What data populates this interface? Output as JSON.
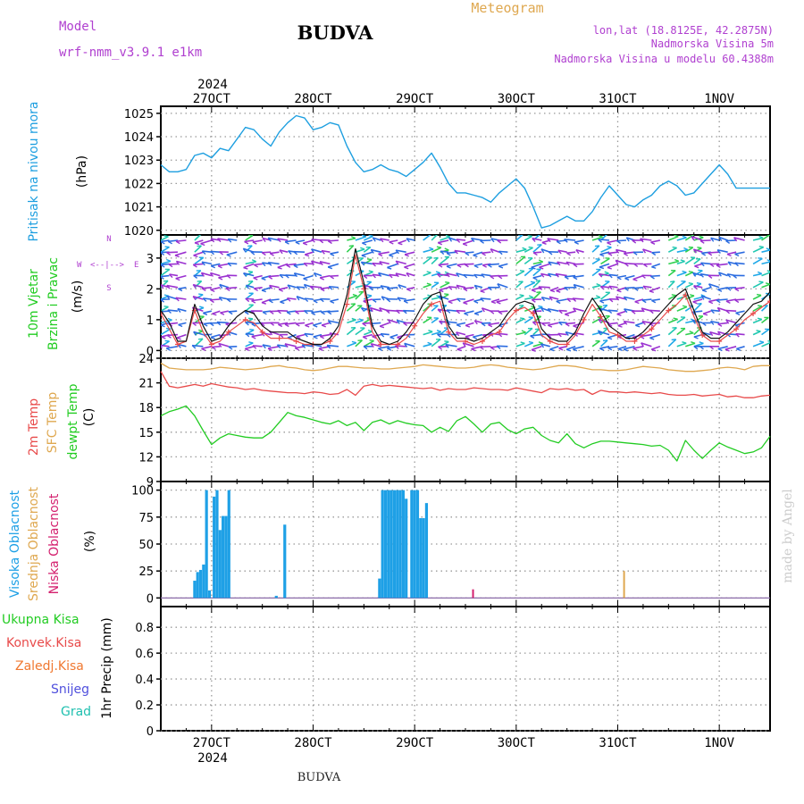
{
  "header": {
    "model_label": "Model",
    "model_name": "wrf-nmm_v3.9.1  e1km",
    "station_title": "BUDVA",
    "meteogram_label": "Meteogram",
    "coords": "lon,lat (18.8125E, 42.2875N)",
    "elevation": "Nadmorska Visina 5m",
    "model_elevation": "Nadmorska Visina u modelu 60.4388m",
    "watermark": "made by Angel",
    "footer": "BUDVA"
  },
  "colors": {
    "pressure": "#1e9fe0",
    "temp2m": "#e84a4a",
    "sfc": "#dfa850",
    "dewpoint": "#22cc22",
    "wind_speed": "#111111",
    "gust": "#e84a4a",
    "high_cloud": "#1ea0e6",
    "mid_cloud": "#dfa850",
    "low_cloud": "#d4206e",
    "purple_text": "#b040d0"
  },
  "time_axis": {
    "top_year": "2024",
    "bottom_year": "2024",
    "labels": [
      "27OCT",
      "28OCT",
      "29OCT",
      "30OCT",
      "31OCT",
      "1NOV"
    ],
    "label_hours": [
      24,
      48,
      72,
      96,
      120,
      144
    ],
    "range_hours": [
      12,
      156
    ]
  },
  "chart_data": [
    {
      "type": "line",
      "name": "pressure",
      "ylabel_lines": [
        "Pritisak na nivou mora",
        "(hPa)"
      ],
      "yticks": [
        1020,
        1021,
        1022,
        1023,
        1024,
        1025
      ],
      "ylim": [
        1019.8,
        1025.3
      ],
      "grid": true,
      "x": [
        12,
        14,
        16,
        18,
        20,
        22,
        24,
        26,
        28,
        30,
        32,
        34,
        36,
        38,
        40,
        42,
        44,
        46,
        48,
        50,
        52,
        54,
        56,
        58,
        60,
        62,
        64,
        66,
        68,
        70,
        72,
        74,
        76,
        78,
        80,
        82,
        84,
        86,
        88,
        90,
        92,
        94,
        96,
        98,
        100,
        102,
        104,
        106,
        108,
        110,
        112,
        114,
        116,
        118,
        120,
        122,
        124,
        126,
        128,
        130,
        132,
        134,
        136,
        138,
        140,
        142,
        144,
        146,
        148,
        150,
        152,
        154,
        156
      ],
      "y": [
        1022.8,
        1022.5,
        1022.5,
        1022.6,
        1023.2,
        1023.3,
        1023.1,
        1023.5,
        1023.4,
        1023.9,
        1024.4,
        1024.3,
        1023.9,
        1023.6,
        1024.2,
        1024.6,
        1024.9,
        1024.8,
        1024.3,
        1024.4,
        1024.6,
        1024.5,
        1023.6,
        1022.9,
        1022.5,
        1022.6,
        1022.8,
        1022.6,
        1022.5,
        1022.3,
        1022.6,
        1022.9,
        1023.3,
        1022.7,
        1022.0,
        1021.6,
        1021.6,
        1021.5,
        1021.4,
        1021.2,
        1021.6,
        1021.9,
        1022.2,
        1021.8,
        1021.0,
        1020.1,
        1020.2,
        1020.4,
        1020.6,
        1020.4,
        1020.4,
        1020.8,
        1021.4,
        1021.9,
        1021.5,
        1021.1,
        1021.0,
        1021.3,
        1021.5,
        1021.9,
        1022.1,
        1021.9,
        1021.5,
        1021.6,
        1022.0,
        1022.4,
        1022.8,
        1022.4,
        1021.8,
        1021.8,
        1021.8,
        1021.8,
        1021.8
      ]
    },
    {
      "type": "line",
      "name": "wind",
      "ylabel_lines": [
        "10m Vjetar",
        "Brzina i Pravac",
        "(m/s)"
      ],
      "direction_key": [
        "W",
        "<--|-->",
        "E",
        "N",
        "S"
      ],
      "yticks": [
        0,
        1,
        2,
        3
      ],
      "ylim": [
        -0.25,
        3.75
      ],
      "grid": true,
      "series": [
        {
          "name": "speed",
          "x": [
            12,
            14,
            16,
            18,
            20,
            22,
            24,
            26,
            28,
            30,
            32,
            34,
            36,
            38,
            40,
            42,
            44,
            46,
            48,
            50,
            52,
            54,
            56,
            58,
            60,
            62,
            64,
            66,
            68,
            70,
            72,
            74,
            76,
            78,
            80,
            82,
            84,
            86,
            88,
            90,
            92,
            94,
            96,
            98,
            100,
            102,
            104,
            106,
            108,
            110,
            112,
            114,
            116,
            118,
            120,
            122,
            124,
            126,
            128,
            130,
            132,
            134,
            136,
            138,
            140,
            142,
            144,
            146,
            148,
            150,
            152,
            154,
            156
          ],
          "y": [
            1.3,
            0.9,
            0.3,
            0.3,
            1.5,
            0.8,
            0.3,
            0.4,
            0.8,
            1.1,
            1.3,
            1.2,
            0.8,
            0.6,
            0.6,
            0.6,
            0.4,
            0.3,
            0.2,
            0.2,
            0.4,
            0.8,
            1.8,
            3.3,
            2.2,
            0.8,
            0.3,
            0.2,
            0.3,
            0.6,
            1.0,
            1.5,
            1.8,
            1.9,
            0.8,
            0.4,
            0.4,
            0.3,
            0.4,
            0.6,
            0.8,
            1.2,
            1.5,
            1.6,
            1.5,
            0.7,
            0.4,
            0.3,
            0.3,
            0.6,
            1.2,
            1.7,
            1.3,
            0.8,
            0.6,
            0.4,
            0.4,
            0.6,
            0.9,
            1.2,
            1.5,
            1.8,
            2.0,
            1.3,
            0.6,
            0.4,
            0.4,
            0.6,
            0.9,
            1.2,
            1.5,
            1.6,
            1.9
          ]
        },
        {
          "name": "gust",
          "x": [
            12,
            14,
            16,
            18,
            20,
            22,
            24,
            26,
            28,
            30,
            32,
            34,
            36,
            38,
            40,
            42,
            44,
            46,
            48,
            50,
            52,
            54,
            56,
            58,
            60,
            62,
            64,
            66,
            68,
            70,
            72,
            74,
            76,
            78,
            80,
            82,
            84,
            86,
            88,
            90,
            92,
            94,
            96,
            98,
            100,
            102,
            104,
            106,
            108,
            110,
            112,
            114,
            116,
            118,
            120,
            122,
            124,
            126,
            128,
            130,
            132,
            134,
            136,
            138,
            140,
            142,
            144,
            146,
            148,
            150,
            152,
            154,
            156
          ],
          "y": [
            1.2,
            0.7,
            0.2,
            0.3,
            1.3,
            0.6,
            0.2,
            0.3,
            0.6,
            0.8,
            1.0,
            0.9,
            0.6,
            0.4,
            0.4,
            0.4,
            0.3,
            0.2,
            0.2,
            0.2,
            0.3,
            0.6,
            1.5,
            3.1,
            2.0,
            0.6,
            0.2,
            0.2,
            0.2,
            0.4,
            0.8,
            1.2,
            1.5,
            1.6,
            0.6,
            0.3,
            0.3,
            0.2,
            0.3,
            0.5,
            0.6,
            1.0,
            1.3,
            1.4,
            1.2,
            0.5,
            0.3,
            0.2,
            0.2,
            0.5,
            1.0,
            1.5,
            1.1,
            0.6,
            0.5,
            0.3,
            0.3,
            0.5,
            0.7,
            1.0,
            1.3,
            1.5,
            1.8,
            1.1,
            0.5,
            0.3,
            0.3,
            0.5,
            0.7,
            1.0,
            1.2,
            1.4,
            1.6
          ]
        }
      ]
    },
    {
      "type": "line",
      "name": "temperature",
      "ylabel_lines": [
        "2m Temp",
        "SFC Temp",
        "dewpt Temp",
        "(C)"
      ],
      "yticks": [
        9,
        12,
        15,
        18,
        21,
        24
      ],
      "ylim": [
        9,
        24
      ],
      "grid": true,
      "series": [
        {
          "name": "2m",
          "x": [
            12,
            14,
            16,
            18,
            20,
            22,
            24,
            26,
            28,
            30,
            32,
            34,
            36,
            38,
            40,
            42,
            44,
            46,
            48,
            50,
            52,
            54,
            56,
            58,
            60,
            62,
            64,
            66,
            68,
            70,
            72,
            74,
            76,
            78,
            80,
            82,
            84,
            86,
            88,
            90,
            92,
            94,
            96,
            98,
            100,
            102,
            104,
            106,
            108,
            110,
            112,
            114,
            116,
            118,
            120,
            122,
            124,
            126,
            128,
            130,
            132,
            134,
            136,
            138,
            140,
            142,
            144,
            146,
            148,
            150,
            152,
            154,
            156
          ],
          "y": [
            22.4,
            20.6,
            20.4,
            20.6,
            20.8,
            20.6,
            20.9,
            20.7,
            20.5,
            20.4,
            20.2,
            20.3,
            20.1,
            20.0,
            19.9,
            19.8,
            19.8,
            19.7,
            19.9,
            19.8,
            19.6,
            19.7,
            20.2,
            19.5,
            20.6,
            20.8,
            20.6,
            20.7,
            20.6,
            20.5,
            20.4,
            20.3,
            20.4,
            20.1,
            20.3,
            20.2,
            20.2,
            20.4,
            20.3,
            20.2,
            20.2,
            20.1,
            20.4,
            20.2,
            20.0,
            19.8,
            20.3,
            20.2,
            20.3,
            20.1,
            20.2,
            19.6,
            20.1,
            19.9,
            19.9,
            19.8,
            19.9,
            19.8,
            19.7,
            19.8,
            19.6,
            19.5,
            19.5,
            19.6,
            19.4,
            19.5,
            19.6,
            19.3,
            19.4,
            19.2,
            19.2,
            19.4,
            19.5
          ]
        },
        {
          "name": "sfc",
          "x": [
            12,
            14,
            16,
            18,
            20,
            22,
            24,
            26,
            28,
            30,
            32,
            34,
            36,
            38,
            40,
            42,
            44,
            46,
            48,
            50,
            52,
            54,
            56,
            58,
            60,
            62,
            64,
            66,
            68,
            70,
            72,
            74,
            76,
            78,
            80,
            82,
            84,
            86,
            88,
            90,
            92,
            94,
            96,
            98,
            100,
            102,
            104,
            106,
            108,
            110,
            112,
            114,
            116,
            118,
            120,
            122,
            124,
            126,
            128,
            130,
            132,
            134,
            136,
            138,
            140,
            142,
            144,
            146,
            148,
            150,
            152,
            154,
            156
          ],
          "y": [
            23.4,
            22.8,
            22.7,
            22.6,
            22.6,
            22.6,
            22.7,
            22.9,
            22.8,
            22.7,
            22.6,
            22.7,
            22.8,
            23.0,
            23.1,
            22.9,
            22.8,
            22.6,
            22.5,
            22.6,
            22.8,
            23.0,
            23.0,
            22.9,
            22.8,
            22.8,
            22.7,
            22.7,
            22.8,
            22.9,
            23.0,
            23.2,
            23.1,
            23.0,
            22.9,
            22.8,
            22.8,
            22.9,
            23.1,
            23.2,
            23.1,
            22.9,
            22.8,
            22.7,
            22.6,
            22.7,
            22.9,
            23.1,
            23.1,
            23.0,
            22.8,
            22.6,
            22.6,
            22.5,
            22.5,
            22.6,
            22.8,
            23.0,
            22.9,
            22.8,
            22.6,
            22.5,
            22.4,
            22.4,
            22.5,
            22.6,
            22.8,
            22.9,
            22.8,
            22.6,
            23.0,
            23.1,
            23.1
          ]
        },
        {
          "name": "dewpt",
          "x": [
            12,
            14,
            16,
            18,
            20,
            22,
            24,
            26,
            28,
            30,
            32,
            34,
            36,
            38,
            40,
            42,
            44,
            46,
            48,
            50,
            52,
            54,
            56,
            58,
            60,
            62,
            64,
            66,
            68,
            70,
            72,
            74,
            76,
            78,
            80,
            82,
            84,
            86,
            88,
            90,
            92,
            94,
            96,
            98,
            100,
            102,
            104,
            106,
            108,
            110,
            112,
            114,
            116,
            118,
            120,
            122,
            124,
            126,
            128,
            130,
            132,
            134,
            136,
            138,
            140,
            142,
            144,
            146,
            148,
            150,
            152,
            154,
            156
          ],
          "y": [
            17.0,
            17.5,
            17.8,
            18.2,
            17.0,
            15.2,
            13.5,
            14.3,
            14.8,
            14.6,
            14.4,
            14.3,
            14.3,
            15.0,
            16.2,
            17.4,
            17.0,
            16.8,
            16.5,
            16.2,
            16.0,
            16.4,
            15.8,
            16.2,
            15.2,
            16.2,
            16.5,
            16.0,
            16.4,
            16.1,
            15.9,
            15.8,
            15.0,
            15.6,
            15.1,
            16.4,
            16.9,
            16.0,
            15.0,
            16.0,
            16.2,
            15.3,
            14.8,
            15.4,
            15.6,
            14.6,
            14.0,
            13.7,
            14.8,
            13.6,
            13.1,
            13.6,
            13.9,
            13.9,
            13.8,
            13.7,
            13.6,
            13.5,
            13.3,
            13.4,
            12.8,
            11.5,
            14.0,
            12.8,
            11.8,
            12.8,
            13.7,
            13.2,
            12.8,
            12.4,
            12.6,
            13.1,
            14.5
          ]
        }
      ]
    },
    {
      "type": "bar",
      "name": "clouds",
      "ylabel_lines": [
        "Visoka Oblacnost",
        "Srednja Oblacnost",
        "Niska Oblacnost",
        "(%)"
      ],
      "yticks": [
        0,
        25,
        50,
        75,
        100
      ],
      "ylim": [
        -8,
        108
      ],
      "grid": true,
      "series": [
        {
          "name": "high",
          "x": [
            20,
            20.7,
            21.4,
            22.1,
            22.8,
            23.5,
            24.6,
            25.3,
            26,
            26.7,
            27.4,
            28.1,
            39.3,
            41.3,
            63.7,
            64.4,
            65.1,
            65.8,
            66.5,
            67.2,
            67.9,
            68.6,
            69.3,
            70,
            71.3,
            72,
            72.7,
            73.4,
            74.1,
            74.8
          ],
          "y": [
            16,
            24,
            26,
            31,
            100,
            7,
            94,
            100,
            63,
            76,
            76,
            100,
            2,
            68,
            18,
            100,
            100,
            100,
            100,
            100,
            100,
            100,
            100,
            92,
            100,
            100,
            100,
            74,
            74,
            88
          ]
        },
        {
          "name": "mid",
          "x": [
            121.5
          ],
          "y": [
            25
          ]
        },
        {
          "name": "low",
          "x": [
            85.8
          ],
          "y": [
            8
          ]
        }
      ]
    },
    {
      "type": "bar",
      "name": "precipitation",
      "ylabel": "1hr Precip (mm)",
      "legend": [
        "Ukupna Kisa",
        "Konvek.Kisa",
        "Zaledj.Kisa",
        "Snijeg",
        "Grad"
      ],
      "legend_colors": [
        "#22cc22",
        "#e84a4a",
        "#f07830",
        "#5050dd",
        "#20c0b0"
      ],
      "yticks": [
        0,
        0.2,
        0.4,
        0.6,
        0.8
      ],
      "ylim": [
        0,
        0.96
      ],
      "grid": true,
      "values": []
    }
  ]
}
